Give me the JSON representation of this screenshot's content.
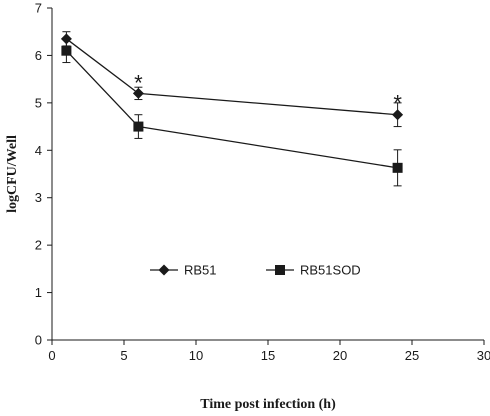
{
  "chart_data": {
    "type": "line",
    "xlabel": "Time post infection (h)",
    "ylabel": "logCFU/Well",
    "xlim": [
      0,
      30
    ],
    "ylim": [
      0,
      7
    ],
    "xticks": [
      0,
      5,
      10,
      15,
      20,
      25,
      30
    ],
    "yticks": [
      0,
      1,
      2,
      3,
      4,
      5,
      6,
      7
    ],
    "grid": false,
    "legend_position": "center-left",
    "series": [
      {
        "name": "RB51",
        "marker": "diamond",
        "color": "#1a1a1a",
        "x": [
          1,
          6,
          24
        ],
        "y": [
          6.35,
          5.2,
          4.75
        ],
        "error": [
          0.15,
          0.13,
          0.25
        ]
      },
      {
        "name": "RB51SOD",
        "marker": "square",
        "color": "#1a1a1a",
        "x": [
          1,
          6,
          24
        ],
        "y": [
          6.1,
          4.5,
          3.63
        ],
        "error": [
          0.25,
          0.25,
          0.38
        ]
      }
    ],
    "annotations": [
      {
        "text": "*",
        "x": 6,
        "y": 5.6
      },
      {
        "text": "*",
        "x": 24,
        "y": 5.18
      }
    ]
  }
}
